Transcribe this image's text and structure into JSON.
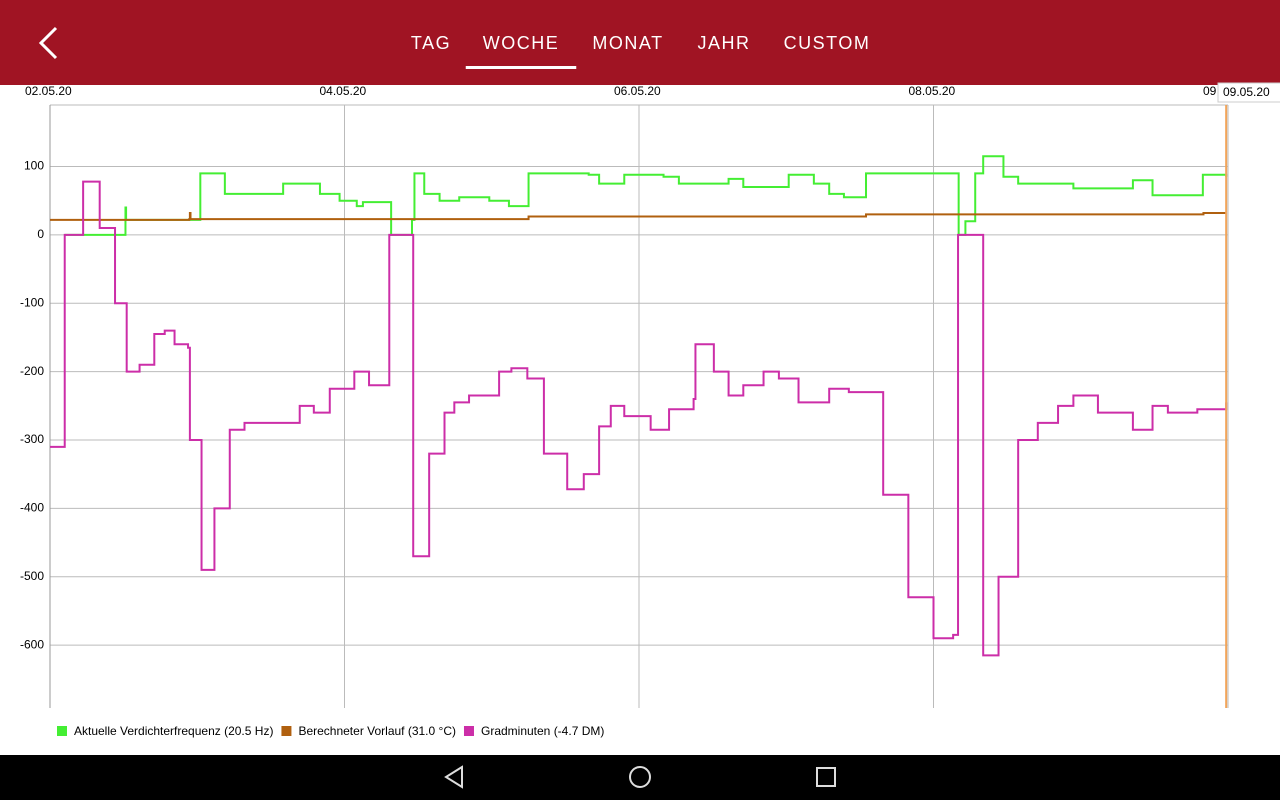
{
  "header": {
    "tabs": [
      "TAG",
      "WOCHE",
      "MONAT",
      "JAHR",
      "CUSTOM"
    ],
    "selected_tab": 1
  },
  "chart_data": {
    "type": "line",
    "line_style": "step",
    "xlim": [
      0,
      192
    ],
    "xticks": [
      {
        "value": 0,
        "label": "02.05.20"
      },
      {
        "value": 48,
        "label": "04.05.20"
      },
      {
        "value": 96,
        "label": "06.05.20"
      },
      {
        "value": 144,
        "label": "08.05.20"
      },
      {
        "value": 192,
        "label": "09"
      }
    ],
    "ylim": [
      -692,
      190
    ],
    "yticks": [
      100,
      0,
      -100,
      -200,
      -300,
      -400,
      -500,
      -600
    ],
    "grid": true,
    "cursor": {
      "label": "09.05.20",
      "x": 191.7,
      "color": "#f2a55a"
    },
    "series": [
      {
        "name": "Aktuelle Verdichterfrequenz (20.5 Hz)",
        "color": "#44ee33",
        "x": [
          2.4,
          12.2,
          12.3,
          12.4,
          24.3,
          24.5,
          27,
          28.5,
          37.4,
          38,
          42.3,
          44,
          47.2,
          50,
          51,
          55.4,
          55.6,
          57,
          59,
          59.4,
          61,
          63.5,
          66.7,
          71.6,
          74.8,
          77.8,
          78,
          87.8,
          89.5,
          93.6,
          100,
          102.5,
          110.6,
          113,
          120.4,
          124.5,
          127,
          129.4,
          133,
          148,
          148.1,
          149.2,
          150.8,
          152.1,
          155.4,
          157.8,
          166.8,
          176.5,
          179.7,
          187.9,
          191.7
        ],
        "values": [
          0,
          0,
          40,
          22,
          22,
          90,
          90,
          60,
          60,
          75,
          75,
          60,
          50,
          42,
          48,
          48,
          0,
          0,
          22,
          90,
          60,
          50,
          55,
          50,
          42,
          42,
          90,
          88,
          75,
          88,
          85,
          75,
          82,
          70,
          88,
          75,
          60,
          55,
          90,
          90,
          0,
          20,
          90,
          115,
          85,
          75,
          68,
          80,
          58,
          88,
          85
        ]
      },
      {
        "name": "Berechneter Vorlauf (31.0 °C)",
        "color": "#b0600f",
        "x": [
          0,
          22.7,
          22.8,
          22.9,
          78,
          133,
          188,
          191.7
        ],
        "values": [
          22,
          23,
          32,
          23,
          27,
          30,
          32,
          32
        ]
      },
      {
        "name": "Gradminuten (-4.7 DM)",
        "color": "#cc2ea8",
        "x": [
          0,
          2.4,
          5.4,
          8.1,
          10.6,
          12.5,
          14.6,
          17,
          18.7,
          20.3,
          22.5,
          22.8,
          24.7,
          26.8,
          29.3,
          31.7,
          36.6,
          40.7,
          43,
          45.6,
          49.6,
          52,
          55,
          55.3,
          59.2,
          61.8,
          64.3,
          65.9,
          68.3,
          70.8,
          73.2,
          75.2,
          77.8,
          80.5,
          84.3,
          87,
          89.5,
          91.4,
          93.6,
          97.9,
          100.9,
          104.9,
          105.2,
          108.2,
          110.6,
          113,
          116.3,
          118.8,
          122,
          124.5,
          127,
          130.2,
          132.6,
          135.8,
          139.9,
          144,
          147.2,
          148,
          152.1,
          154.6,
          157.8,
          161,
          164.3,
          166.8,
          170.8,
          176.5,
          179.7,
          182.2,
          187,
          191.7
        ],
        "values": [
          -310,
          0,
          78,
          10,
          -100,
          -200,
          -190,
          -145,
          -140,
          -160,
          -165,
          -300,
          -490,
          -400,
          -285,
          -275,
          -275,
          -250,
          -260,
          -225,
          -200,
          -220,
          -220,
          0,
          -470,
          -320,
          -260,
          -245,
          -235,
          -235,
          -200,
          -195,
          -210,
          -320,
          -372,
          -350,
          -280,
          -250,
          -265,
          -285,
          -255,
          -240,
          -160,
          -200,
          -235,
          -220,
          -200,
          -210,
          -245,
          -245,
          -225,
          -230,
          -230,
          -380,
          -530,
          -590,
          -585,
          0,
          -615,
          -500,
          -300,
          -275,
          -250,
          -235,
          -260,
          -285,
          -250,
          -260,
          -255,
          -245
        ]
      }
    ]
  }
}
